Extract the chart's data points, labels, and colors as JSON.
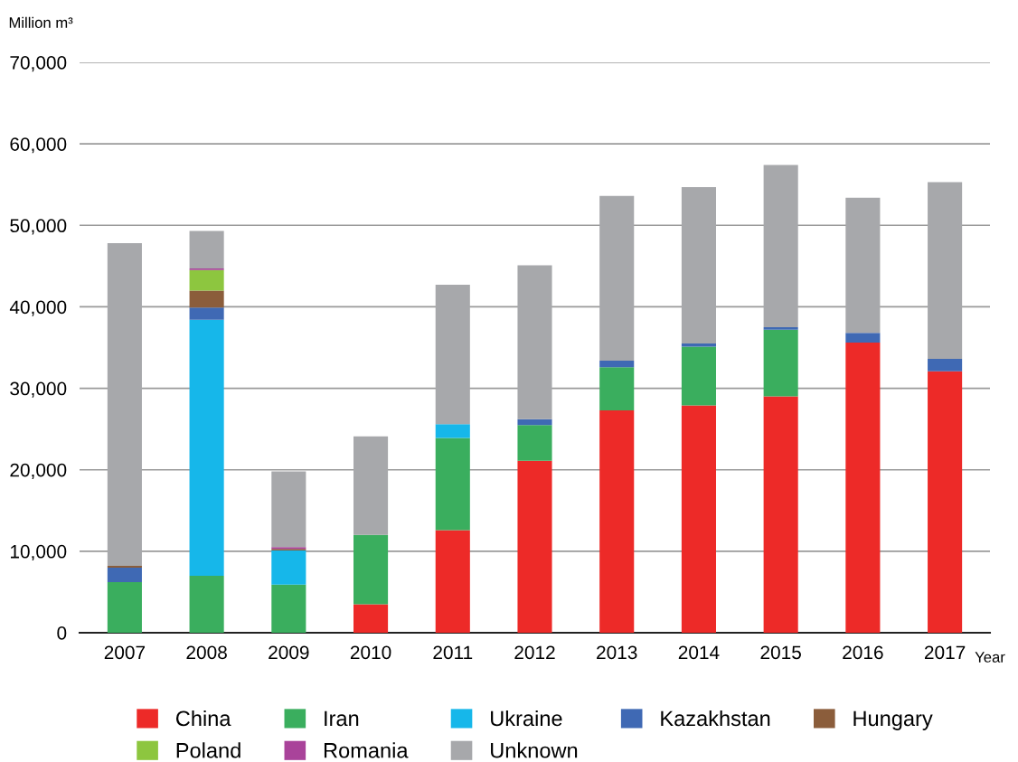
{
  "chart_data": {
    "type": "bar",
    "stacked": true,
    "ylabel": "Million m³",
    "xlabel": "Year",
    "categories": [
      "2007",
      "2008",
      "2009",
      "2010",
      "2011",
      "2012",
      "2013",
      "2014",
      "2015",
      "2016",
      "2017"
    ],
    "series": [
      {
        "name": "China",
        "color": "#ed2a28",
        "values": [
          null,
          null,
          null,
          3500,
          12600,
          21100,
          27300,
          27900,
          29000,
          35600,
          32100
        ]
      },
      {
        "name": "Iran",
        "color": "#3aae5e",
        "values": [
          6200,
          7000,
          5900,
          8500,
          11300,
          4400,
          5300,
          7200,
          8200,
          null,
          null
        ]
      },
      {
        "name": "Ukraine",
        "color": "#16b7ea",
        "values": [
          null,
          31400,
          4200,
          null,
          1700,
          null,
          null,
          null,
          null,
          null,
          null
        ]
      },
      {
        "name": "Kazakhstan",
        "color": "#3f69b4",
        "values": [
          1800,
          1500,
          null,
          null,
          null,
          700,
          800,
          400,
          300,
          1200,
          1500
        ]
      },
      {
        "name": "Hungary",
        "color": "#8b5d3b",
        "values": [
          200,
          2100,
          200,
          null,
          null,
          null,
          null,
          null,
          null,
          null,
          null
        ]
      },
      {
        "name": "Poland",
        "color": "#8dc63f",
        "values": [
          null,
          2500,
          null,
          null,
          null,
          null,
          null,
          null,
          null,
          null,
          null
        ]
      },
      {
        "name": "Romania",
        "color": "#a9439a",
        "values": [
          null,
          200,
          200,
          null,
          null,
          null,
          null,
          null,
          null,
          null,
          null
        ]
      },
      {
        "name": "Unknown",
        "color": "#a7a8ab",
        "values": [
          39600,
          4600,
          9300,
          12100,
          17100,
          18900,
          20200,
          19200,
          19900,
          16600,
          21700
        ]
      }
    ],
    "ylim": [
      0,
      70000
    ],
    "yticks": [
      0,
      {
        "value": 10000,
        "label": "10,000"
      },
      {
        "value": 20000,
        "label": "20,000"
      },
      {
        "value": 30000,
        "label": "30,000"
      },
      {
        "value": 40000,
        "label": "40,000"
      },
      {
        "value": 50000,
        "label": "50,000"
      },
      {
        "value": 60000,
        "label": "60,000"
      },
      {
        "value": 70000,
        "label": "70,000"
      }
    ],
    "grid": "y",
    "legend": "bottom"
  }
}
